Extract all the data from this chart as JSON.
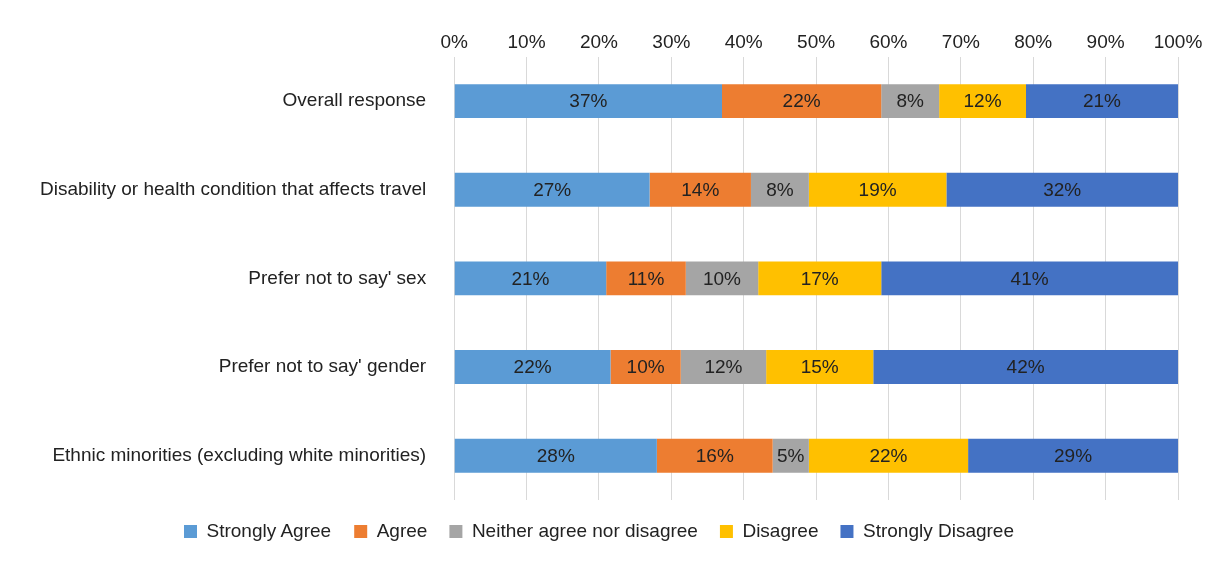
{
  "chart_data": {
    "type": "bar",
    "orientation": "horizontal",
    "stacked": true,
    "categories": [
      "Overall response",
      "Disability or health condition that affects travel",
      "Prefer not to say' sex",
      "Prefer not to say' gender",
      "Ethnic minorities (excluding white minorities)"
    ],
    "series": [
      {
        "name": "Strongly Agree",
        "color": "#5b9bd5",
        "values": [
          37,
          27,
          21,
          21.6,
          28
        ],
        "value_labels": [
          "37%",
          "27%",
          "21%",
          "22%",
          "28%"
        ]
      },
      {
        "name": "Agree",
        "color": "#ed7d31",
        "values": [
          22,
          14,
          11,
          9.7,
          16
        ],
        "value_labels": [
          "22%",
          "14%",
          "11%",
          "10%",
          "16%"
        ]
      },
      {
        "name": "Neither agree nor disagree",
        "color": "#a5a5a5",
        "values": [
          8,
          8,
          10,
          11.8,
          5
        ],
        "value_labels": [
          "8%",
          "8%",
          "10%",
          "12%",
          "5%"
        ]
      },
      {
        "name": "Disagree",
        "color": "#ffc000",
        "values": [
          12,
          19,
          17,
          14.8,
          22
        ],
        "value_labels": [
          "12%",
          "19%",
          "17%",
          "15%",
          "22%"
        ]
      },
      {
        "name": "Strongly Disagree",
        "color": "#4472c4",
        "values": [
          21,
          32,
          41,
          42.1,
          29
        ],
        "value_labels": [
          "21%",
          "32%",
          "41%",
          "42%",
          "29%"
        ]
      }
    ],
    "xlim": [
      0,
      100
    ],
    "xticks": [
      {
        "value": 0,
        "label": "0%"
      },
      {
        "value": 10,
        "label": "10%"
      },
      {
        "value": 20,
        "label": "20%"
      },
      {
        "value": 30,
        "label": "30%"
      },
      {
        "value": 40,
        "label": "40%"
      },
      {
        "value": 50,
        "label": "50%"
      },
      {
        "value": 60,
        "label": "60%"
      },
      {
        "value": 70,
        "label": "70%"
      },
      {
        "value": 80,
        "label": "80%"
      },
      {
        "value": 90,
        "label": "90%"
      },
      {
        "value": 100,
        "label": "100%"
      }
    ],
    "grid": "x",
    "legend": "bottom"
  }
}
